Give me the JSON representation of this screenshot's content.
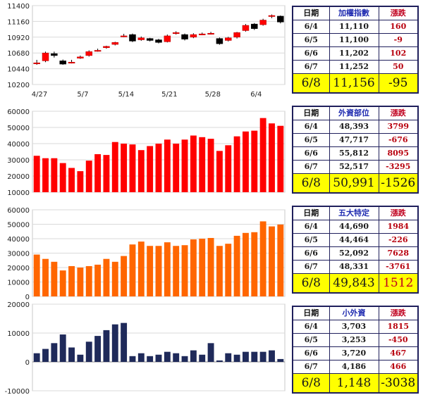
{
  "charts": [
    {
      "type": "candlestick",
      "title": "",
      "ylim": [
        10200,
        11400
      ],
      "y_ticks": [
        "11400",
        "11160",
        "10920",
        "10680",
        "10440",
        "10200"
      ],
      "x_tick_labels": [
        "4/27",
        "5/7",
        "5/14",
        "5/21",
        "5/28",
        "6/4"
      ],
      "up_color": "#ff0000",
      "down_color": "#000000",
      "candles": [
        {
          "o": 10530,
          "c": 10530,
          "h": 10575,
          "l": 10500
        },
        {
          "o": 10560,
          "c": 10680,
          "h": 10700,
          "l": 10540
        },
        {
          "o": 10670,
          "c": 10640,
          "h": 10700,
          "l": 10610
        },
        {
          "o": 10560,
          "c": 10510,
          "h": 10580,
          "l": 10500
        },
        {
          "o": 10540,
          "c": 10540,
          "h": 10575,
          "l": 10520
        },
        {
          "o": 10600,
          "c": 10620,
          "h": 10640,
          "l": 10590
        },
        {
          "o": 10640,
          "c": 10700,
          "h": 10720,
          "l": 10625
        },
        {
          "o": 10720,
          "c": 10720,
          "h": 10745,
          "l": 10700
        },
        {
          "o": 10760,
          "c": 10780,
          "h": 10790,
          "l": 10745
        },
        {
          "o": 10810,
          "c": 10840,
          "h": 10850,
          "l": 10795
        },
        {
          "o": 10940,
          "c": 10940,
          "h": 10970,
          "l": 10920
        },
        {
          "o": 10960,
          "c": 10860,
          "h": 10975,
          "l": 10845
        },
        {
          "o": 10880,
          "c": 10910,
          "h": 10930,
          "l": 10865
        },
        {
          "o": 10900,
          "c": 10870,
          "h": 10910,
          "l": 10855
        },
        {
          "o": 10880,
          "c": 10840,
          "h": 10895,
          "l": 10825
        },
        {
          "o": 10850,
          "c": 10940,
          "h": 10960,
          "l": 10840
        },
        {
          "o": 10980,
          "c": 10990,
          "h": 11010,
          "l": 10960
        },
        {
          "o": 10960,
          "c": 10890,
          "h": 10975,
          "l": 10870
        },
        {
          "o": 10920,
          "c": 10960,
          "h": 10980,
          "l": 10905
        },
        {
          "o": 10970,
          "c": 10970,
          "h": 10990,
          "l": 10950
        },
        {
          "o": 10980,
          "c": 10980,
          "h": 11000,
          "l": 10960
        },
        {
          "o": 10900,
          "c": 10820,
          "h": 10915,
          "l": 10805
        },
        {
          "o": 10870,
          "c": 10910,
          "h": 10925,
          "l": 10855
        },
        {
          "o": 10920,
          "c": 10990,
          "h": 11000,
          "l": 10900
        },
        {
          "o": 11020,
          "c": 11100,
          "h": 11120,
          "l": 11005
        },
        {
          "o": 11120,
          "c": 11050,
          "h": 11135,
          "l": 11030
        },
        {
          "o": 11110,
          "c": 11180,
          "h": 11200,
          "l": 11095
        },
        {
          "o": 11240,
          "c": 11250,
          "h": 11265,
          "l": 11210
        },
        {
          "o": 11240,
          "c": 11150,
          "h": 11250,
          "l": 11130
        }
      ]
    },
    {
      "type": "bar",
      "title": "",
      "ylim": [
        10000,
        60000
      ],
      "y_ticks": [
        "60000",
        "50000",
        "40000",
        "30000",
        "20000",
        "10000"
      ],
      "color": "#ff0000",
      "values": [
        32500,
        31000,
        31000,
        28000,
        25000,
        23000,
        29500,
        33500,
        33000,
        41000,
        40000,
        39500,
        36000,
        38500,
        40000,
        42500,
        40000,
        42500,
        45000,
        44000,
        43000,
        35500,
        39000,
        44500,
        47500,
        48000,
        55800,
        52500,
        51000
      ]
    },
    {
      "type": "bar",
      "title": "",
      "ylim": [
        0,
        60000
      ],
      "y_ticks": [
        "60000",
        "50000",
        "40000",
        "30000",
        "20000",
        "10000",
        "0"
      ],
      "color": "#ff6600",
      "values": [
        29000,
        26000,
        24000,
        18000,
        21000,
        20000,
        21000,
        22000,
        26000,
        24000,
        28000,
        36000,
        38000,
        35000,
        35000,
        37500,
        35000,
        35500,
        39500,
        40000,
        40500,
        35000,
        36500,
        42000,
        44000,
        44500,
        52000,
        48500,
        49800
      ]
    },
    {
      "type": "bar",
      "title": "",
      "ylim": [
        -10000,
        20000
      ],
      "y_ticks": [
        "20000",
        "10000",
        "0",
        "-10000"
      ],
      "color": "#1f2a5a",
      "values": [
        3000,
        4500,
        6500,
        9500,
        5000,
        2500,
        7000,
        9000,
        11000,
        13000,
        13500,
        2000,
        3000,
        2000,
        2500,
        3500,
        3000,
        2000,
        4000,
        2500,
        6500,
        500,
        3000,
        2500,
        3500,
        3500,
        3500,
        4000,
        1000
      ]
    }
  ],
  "tables": [
    {
      "headers": [
        "日期",
        "加權指數",
        "漲跌"
      ],
      "rows": [
        [
          "6/4",
          "11,110",
          "160"
        ],
        [
          "6/5",
          "11,100",
          "-9"
        ],
        [
          "6/6",
          "11,202",
          "102"
        ],
        [
          "6/7",
          "11,252",
          "50"
        ]
      ],
      "latest": [
        "6/8",
        "11,156",
        "-95"
      ]
    },
    {
      "headers": [
        "日期",
        "外資部位",
        "漲跌"
      ],
      "rows": [
        [
          "6/4",
          "48,393",
          "3799"
        ],
        [
          "6/5",
          "47,717",
          "-676"
        ],
        [
          "6/6",
          "55,812",
          "8095"
        ],
        [
          "6/7",
          "52,517",
          "-3295"
        ]
      ],
      "latest": [
        "6/8",
        "50,991",
        "-1526"
      ]
    },
    {
      "headers": [
        "日期",
        "五大特定",
        "漲跌"
      ],
      "rows": [
        [
          "6/4",
          "44,690",
          "1984"
        ],
        [
          "6/5",
          "44,464",
          "-226"
        ],
        [
          "6/6",
          "52,092",
          "7628"
        ],
        [
          "6/7",
          "48,331",
          "-3761"
        ]
      ],
      "latest": [
        "6/8",
        "49,843",
        "1512"
      ]
    },
    {
      "headers": [
        "日期",
        "小外資",
        "漲跌"
      ],
      "rows": [
        [
          "6/4",
          "3,703",
          "1815"
        ],
        [
          "6/5",
          "3,253",
          "-450"
        ],
        [
          "6/6",
          "3,720",
          "467"
        ],
        [
          "6/7",
          "4,186",
          "466"
        ]
      ],
      "latest": [
        "6/8",
        "1,148",
        "-3038"
      ]
    }
  ]
}
